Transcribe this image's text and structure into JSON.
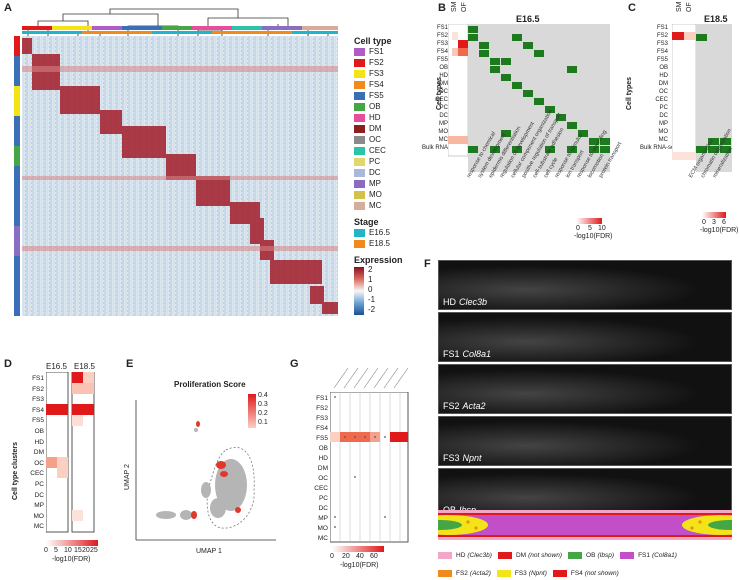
{
  "panels": {
    "A": "A",
    "B": "B",
    "C": "C",
    "D": "D",
    "E": "E",
    "F": "F",
    "G": "G"
  },
  "legendA": {
    "cell_type_title": "Cell type",
    "cell_types": [
      {
        "label": "FS1",
        "color": "#b05cc4"
      },
      {
        "label": "FS2",
        "color": "#e0191b"
      },
      {
        "label": "FS3",
        "color": "#f3e418"
      },
      {
        "label": "FS4",
        "color": "#f08a1c"
      },
      {
        "label": "FS5",
        "color": "#3a6fb8"
      },
      {
        "label": "OB",
        "color": "#45a645"
      },
      {
        "label": "HD",
        "color": "#e64d9b"
      },
      {
        "label": "DM",
        "color": "#8c1f1f"
      },
      {
        "label": "OC",
        "color": "#8a8a8a"
      },
      {
        "label": "CEC",
        "color": "#2ec2a6"
      },
      {
        "label": "PC",
        "color": "#e5d66b"
      },
      {
        "label": "DC",
        "color": "#a8b9d9"
      },
      {
        "label": "MP",
        "color": "#8a6dc0"
      },
      {
        "label": "MO",
        "color": "#d4c14a"
      },
      {
        "label": "MC",
        "color": "#d6ad9a"
      }
    ],
    "stage_title": "Stage",
    "stages": [
      {
        "label": "E16.5",
        "color": "#22b5c7"
      },
      {
        "label": "E18.5",
        "color": "#f08a1c"
      }
    ],
    "expression_title": "Expression",
    "expression_ticks": [
      "2",
      "1",
      "0",
      "-1",
      "-2"
    ]
  },
  "panelB": {
    "title": "E16.5",
    "yaxis": "Cell types",
    "rows": [
      "FS1",
      "FS2",
      "FS3",
      "FS4",
      "FS5",
      "OB",
      "HD",
      "DM",
      "OC",
      "CEC",
      "PC",
      "DC",
      "MP",
      "MO",
      "MC",
      "Bulk RNA-seq"
    ],
    "sm_of": [
      "SM",
      "OF"
    ],
    "terms": [
      "response to chemical",
      "system development",
      "epidermis differentiation",
      "regulation of development",
      "cellular component organization",
      "positive regulation of transport",
      "cell-substrate adhesion",
      "cell cycle",
      "response to stimulus",
      "ion transport",
      "response to wounding",
      "locomotion",
      "protein transport"
    ],
    "colorbar_ticks": [
      "0",
      "5",
      "10"
    ],
    "colorbar_label": "-log10(FDR)"
  },
  "panelC": {
    "title": "E18.5",
    "yaxis": "Cell types",
    "rows": [
      "FS1",
      "FS2",
      "FS3",
      "FS4",
      "FS5",
      "OB",
      "HD",
      "DM",
      "OC",
      "CEC",
      "PC",
      "DC",
      "MP",
      "MO",
      "MC",
      "Bulk RNA-seq"
    ],
    "sm_of": [
      "SM",
      "OF"
    ],
    "terms": [
      "ECM organization",
      "chromatin organization",
      "mineralization"
    ],
    "colorbar_ticks": [
      "0",
      "3",
      "6"
    ],
    "colorbar_label": "-log10(FDR)"
  },
  "panelD": {
    "stage_labels": [
      "E16.5",
      "E18.5"
    ],
    "yaxis": "Cell type clusters",
    "rows": [
      "FS1",
      "FS2",
      "FS3",
      "FS4",
      "FS5",
      "OB",
      "HD",
      "DM",
      "OC",
      "CEC",
      "PC",
      "DC",
      "MP",
      "MO",
      "MC"
    ],
    "colorbar_ticks": [
      "0",
      "5",
      "10",
      "15",
      "20",
      "25"
    ],
    "colorbar_label": "-log10(FDR)"
  },
  "panelE": {
    "title": "Proliferation Score",
    "xaxis": "UMAP 1",
    "yaxis": "UMAP 2",
    "ticks": [
      "0.4",
      "0.3",
      "0.2",
      "0.1"
    ]
  },
  "panelG": {
    "rows": [
      "FS1",
      "FS2",
      "FS3",
      "FS4",
      "FS5",
      "OB",
      "HD",
      "DM",
      "OC",
      "CEC",
      "PC",
      "DC",
      "MP",
      "MO",
      "MC"
    ],
    "colorbar_ticks": [
      "0",
      "20",
      "40",
      "60"
    ],
    "colorbar_label": "-log10(FDR)"
  },
  "panelF": {
    "images": [
      {
        "marker": "HD",
        "gene": "Clec3b"
      },
      {
        "marker": "FS1",
        "gene": "Col8a1"
      },
      {
        "marker": "FS2",
        "gene": "Acta2"
      },
      {
        "marker": "FS3",
        "gene": "Npnt"
      },
      {
        "marker": "OB",
        "gene": "Ibsp"
      }
    ],
    "legend": [
      {
        "label": "HD",
        "gene": "Clec3b",
        "color": "#f4a6c8"
      },
      {
        "label": "DM",
        "note": "not shown",
        "color": "#e0191b"
      },
      {
        "label": "OB",
        "gene": "Ibsp",
        "color": "#45a645"
      },
      {
        "label": "FS1",
        "gene": "Col8a1",
        "color": "#c24fc7"
      },
      {
        "label": "FS2",
        "gene": "Acta2",
        "color": "#f08a1c"
      },
      {
        "label": "FS3",
        "gene": "Npnt",
        "color": "#f3e418"
      },
      {
        "label": "FS4",
        "note": "not shown",
        "color": "#e0191b"
      }
    ]
  }
}
